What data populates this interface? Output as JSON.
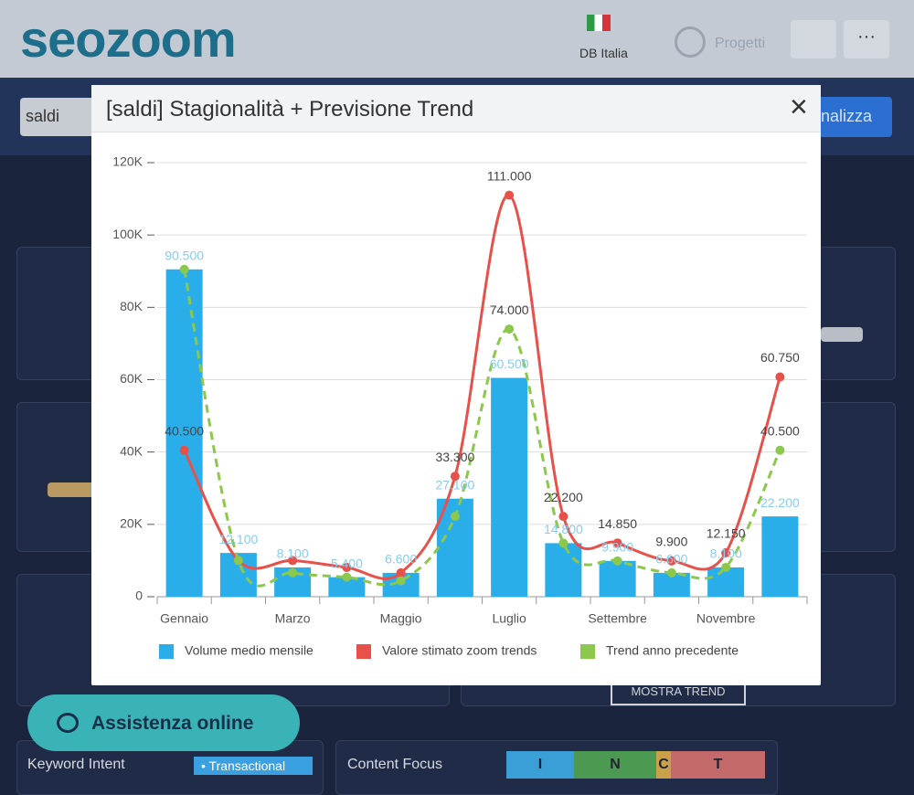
{
  "header": {
    "logo": "seozoom",
    "db": "DB Italia",
    "projects": "Progetti"
  },
  "search": {
    "query": "saldi",
    "button": "nalizza"
  },
  "modal": {
    "title": "[saldi] Stagionalità + Previsione Trend",
    "close": "×"
  },
  "background": {
    "trend_button": "MOSTRA TREND",
    "help": "Assistenza online",
    "intent_label": "Keyword Intent",
    "intent_value": "• Transactional",
    "focus_label": "Content Focus",
    "focus_tabs": [
      "I",
      "N",
      "C",
      "T"
    ]
  },
  "chart_data": {
    "type": "bar",
    "categories": [
      "Gennaio",
      null,
      "Marzo",
      null,
      "Maggio",
      null,
      "Luglio",
      null,
      "Settembre",
      null,
      "Novembre",
      null
    ],
    "series": [
      {
        "name": "Volume medio mensile",
        "type": "bar",
        "color": "#2aaeea",
        "values": [
          90500,
          12100,
          8100,
          5400,
          6600,
          27100,
          60500,
          14800,
          9900,
          6600,
          8100,
          22200
        ],
        "value_labels": [
          "90.500",
          "12.100",
          "8.100",
          "5.400",
          "6.600",
          "27.100",
          "60.500",
          "14.800",
          "9.900",
          "6.600",
          "8.100",
          "22.200"
        ]
      },
      {
        "name": "Valore stimato zoom trends",
        "type": "line",
        "color": "#e8514a",
        "values": [
          40500,
          10000,
          10000,
          8100,
          6600,
          33300,
          111000,
          22200,
          14850,
          9900,
          12150,
          60750
        ],
        "value_labels": [
          "40.500",
          null,
          null,
          null,
          null,
          "33.300",
          "111.000",
          "22.200",
          "14.850",
          "9.900",
          "12.150",
          "60.750"
        ]
      },
      {
        "name": "Trend anno precedente",
        "type": "line",
        "dashed": true,
        "color": "#8cc84b",
        "values": [
          90500,
          10000,
          6600,
          5400,
          4400,
          22200,
          74000,
          14800,
          9900,
          6600,
          8100,
          40500
        ],
        "value_labels": [
          null,
          null,
          null,
          null,
          null,
          null,
          "74.000",
          null,
          null,
          null,
          null,
          "40.500"
        ]
      }
    ],
    "ylim": [
      0,
      120000
    ],
    "yticks": [
      {
        "value": 0,
        "label": "0"
      },
      {
        "value": 20000,
        "label": "20K"
      },
      {
        "value": 40000,
        "label": "40K"
      },
      {
        "value": 60000,
        "label": "60K"
      },
      {
        "value": 80000,
        "label": "80K"
      },
      {
        "value": 100000,
        "label": "100K"
      },
      {
        "value": 120000,
        "label": "120K"
      }
    ],
    "grid": true,
    "legend": "bottom"
  }
}
